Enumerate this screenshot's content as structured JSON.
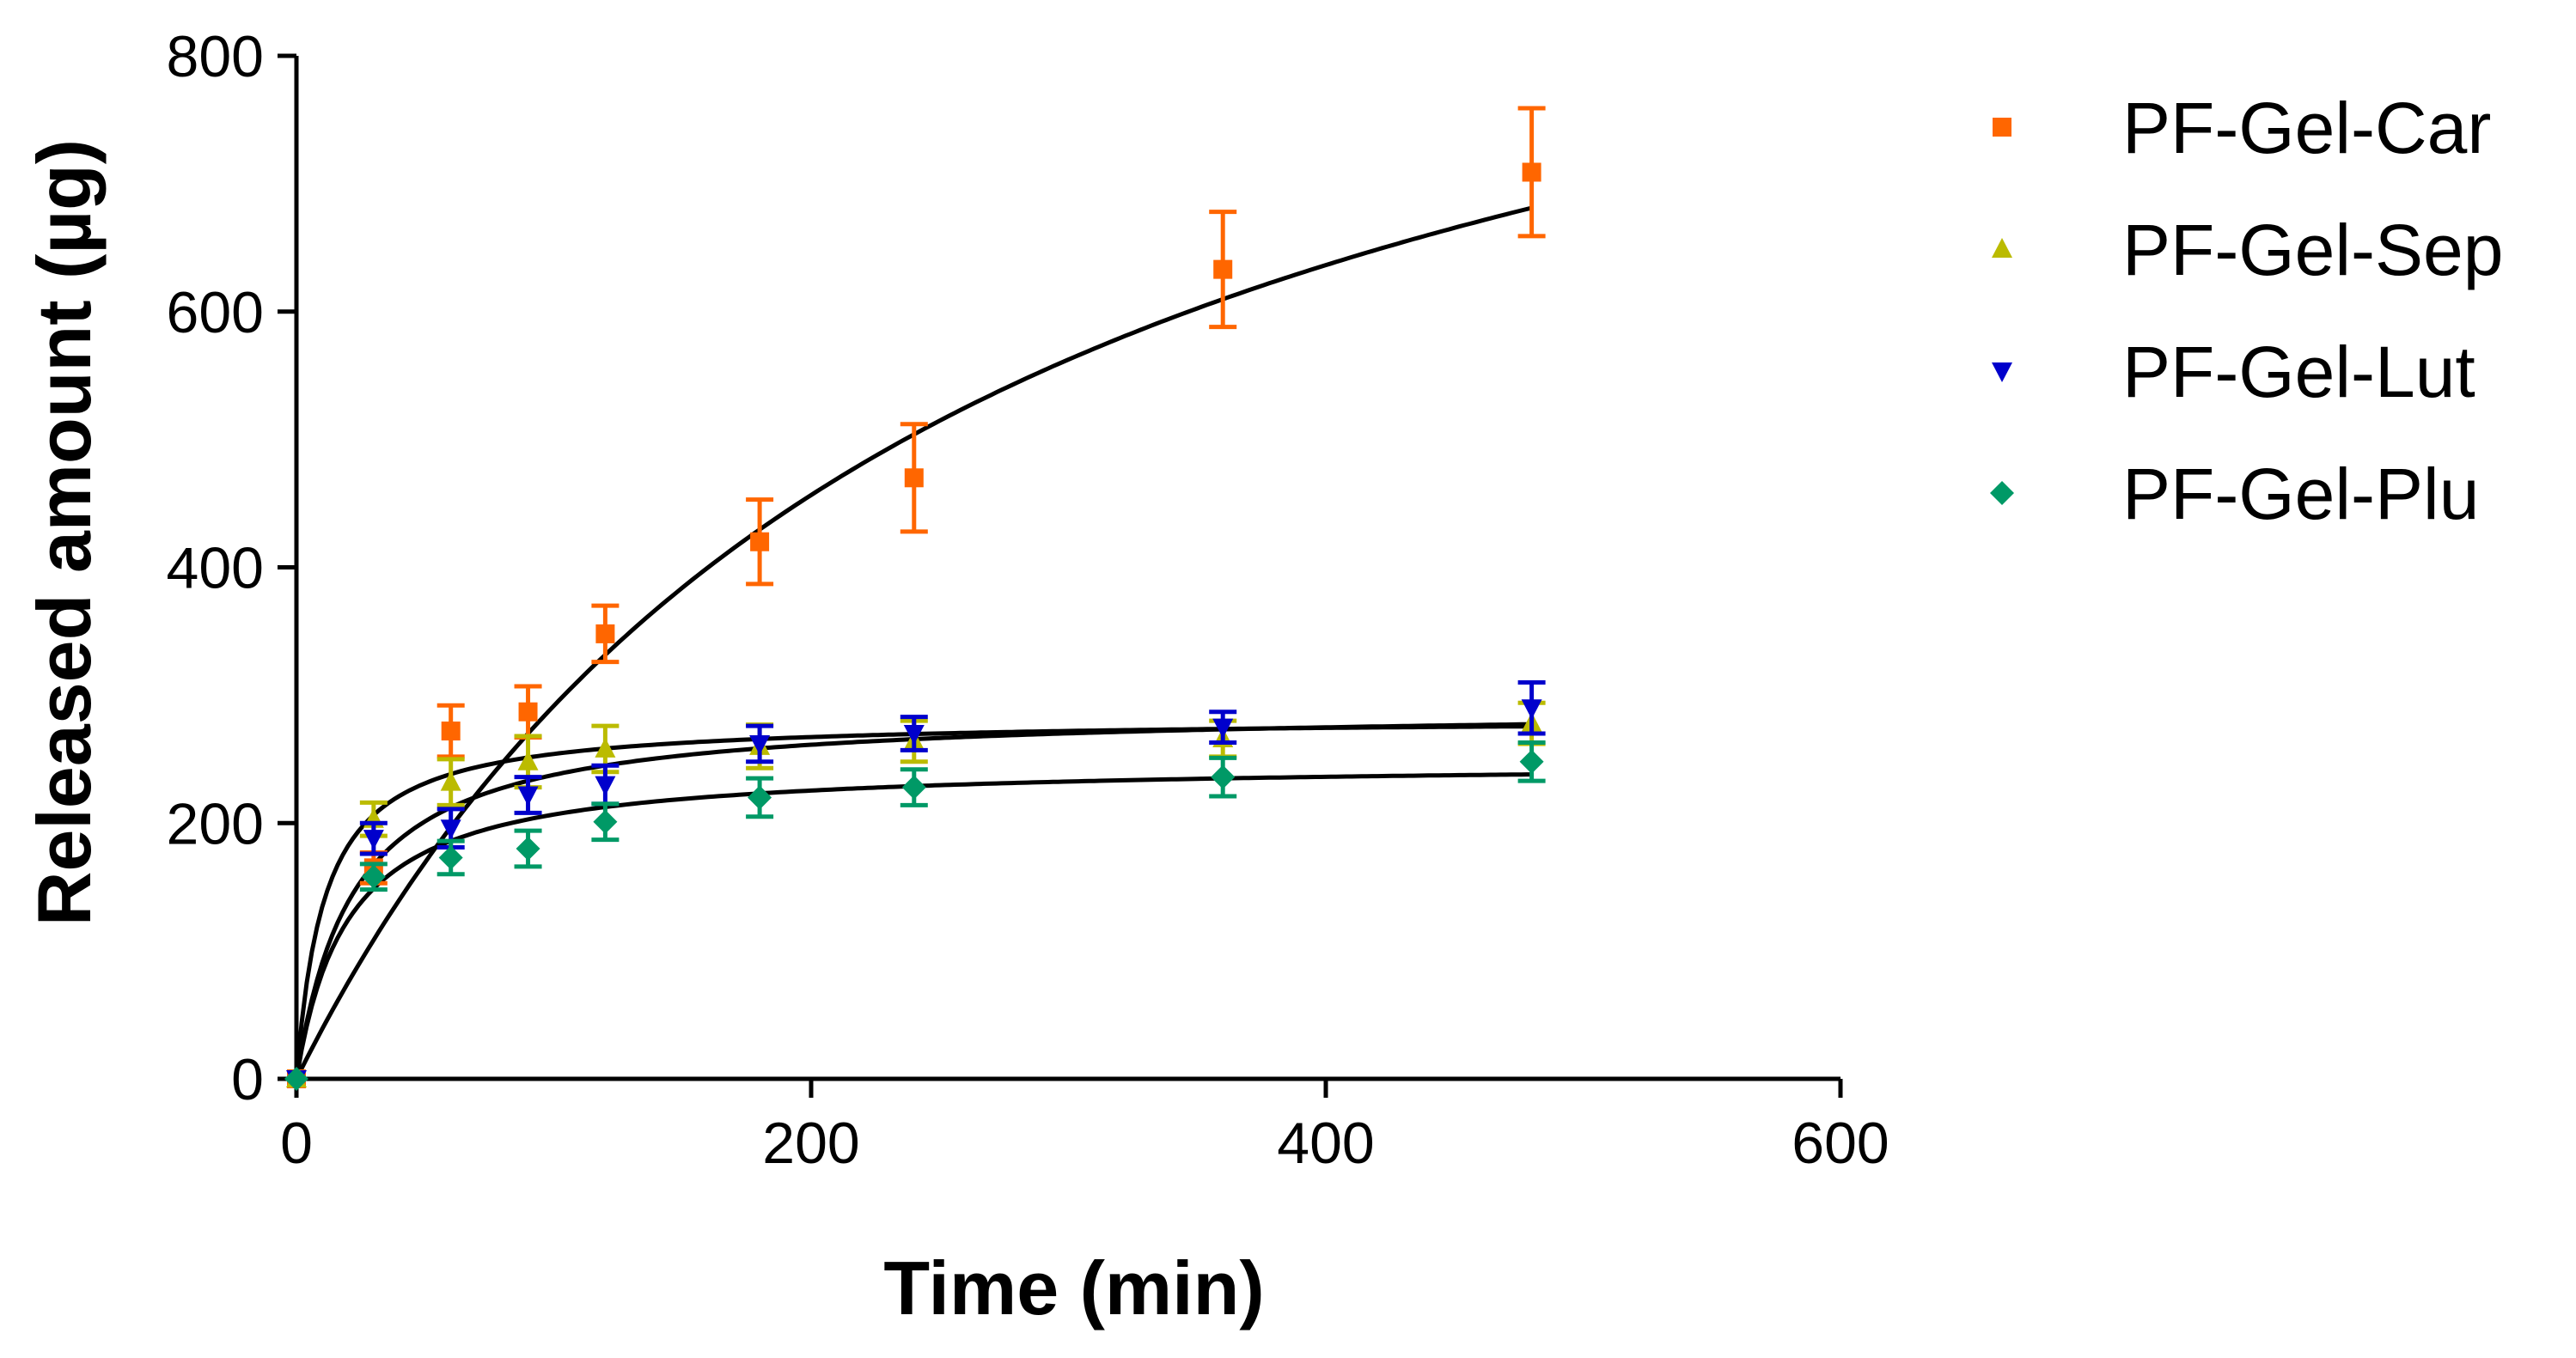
{
  "chart_data": {
    "type": "scatter",
    "title": "",
    "xlabel": "Time (min)",
    "ylabel": "Released amount (µg)",
    "xlim": [
      0,
      600
    ],
    "ylim": [
      0,
      800
    ],
    "xticks": [
      0,
      200,
      400,
      600
    ],
    "yticks": [
      0,
      200,
      400,
      600,
      800
    ],
    "xtick_labels": [
      "0",
      "200",
      "400",
      "600"
    ],
    "ytick_labels": [
      "0",
      "200",
      "400",
      "600",
      "800"
    ],
    "grid": false,
    "legend_position": "right",
    "fit_curves": true,
    "series": [
      {
        "name": "PF-Gel-Car",
        "color": "#ff6600",
        "marker": "square",
        "x": [
          0,
          30,
          60,
          90,
          120,
          180,
          240,
          360,
          480
        ],
        "y": [
          0,
          165,
          272,
          287,
          348,
          420,
          470,
          633,
          709
        ],
        "error": [
          0,
          12,
          20,
          20,
          22,
          33,
          42,
          45,
          50
        ],
        "fit": {
          "model": "hyperbola",
          "bmax": 1050,
          "kd": 260
        }
      },
      {
        "name": "PF-Gel-Sep",
        "color": "#bbbb00",
        "marker": "triangle-up",
        "x": [
          0,
          30,
          60,
          90,
          120,
          180,
          240,
          360,
          480
        ],
        "y": [
          0,
          203,
          232,
          248,
          258,
          260,
          264,
          266,
          278
        ],
        "error": [
          0,
          13,
          18,
          20,
          18,
          17,
          16,
          14,
          16
        ],
        "fit": {
          "model": "hyperbola",
          "bmax": 282,
          "kd": 11
        }
      },
      {
        "name": "PF-Gel-Lut",
        "color": "#0000cc",
        "marker": "triangle-down",
        "x": [
          0,
          30,
          60,
          90,
          120,
          180,
          240,
          360,
          480
        ],
        "y": [
          0,
          188,
          196,
          222,
          230,
          262,
          270,
          275,
          290
        ],
        "error": [
          0,
          12,
          15,
          14,
          15,
          14,
          13,
          12,
          20
        ],
        "fit": {
          "model": "hyperbola",
          "bmax": 290,
          "kd": 22
        }
      },
      {
        "name": "PF-Gel-Plu",
        "color": "#009966",
        "marker": "diamond",
        "x": [
          0,
          30,
          60,
          90,
          120,
          180,
          240,
          360,
          480
        ],
        "y": [
          0,
          158,
          173,
          180,
          201,
          220,
          228,
          236,
          248
        ],
        "error": [
          0,
          10,
          13,
          14,
          14,
          15,
          14,
          15,
          15
        ],
        "fit": {
          "model": "hyperbola",
          "bmax": 248,
          "kd": 20
        }
      }
    ]
  }
}
